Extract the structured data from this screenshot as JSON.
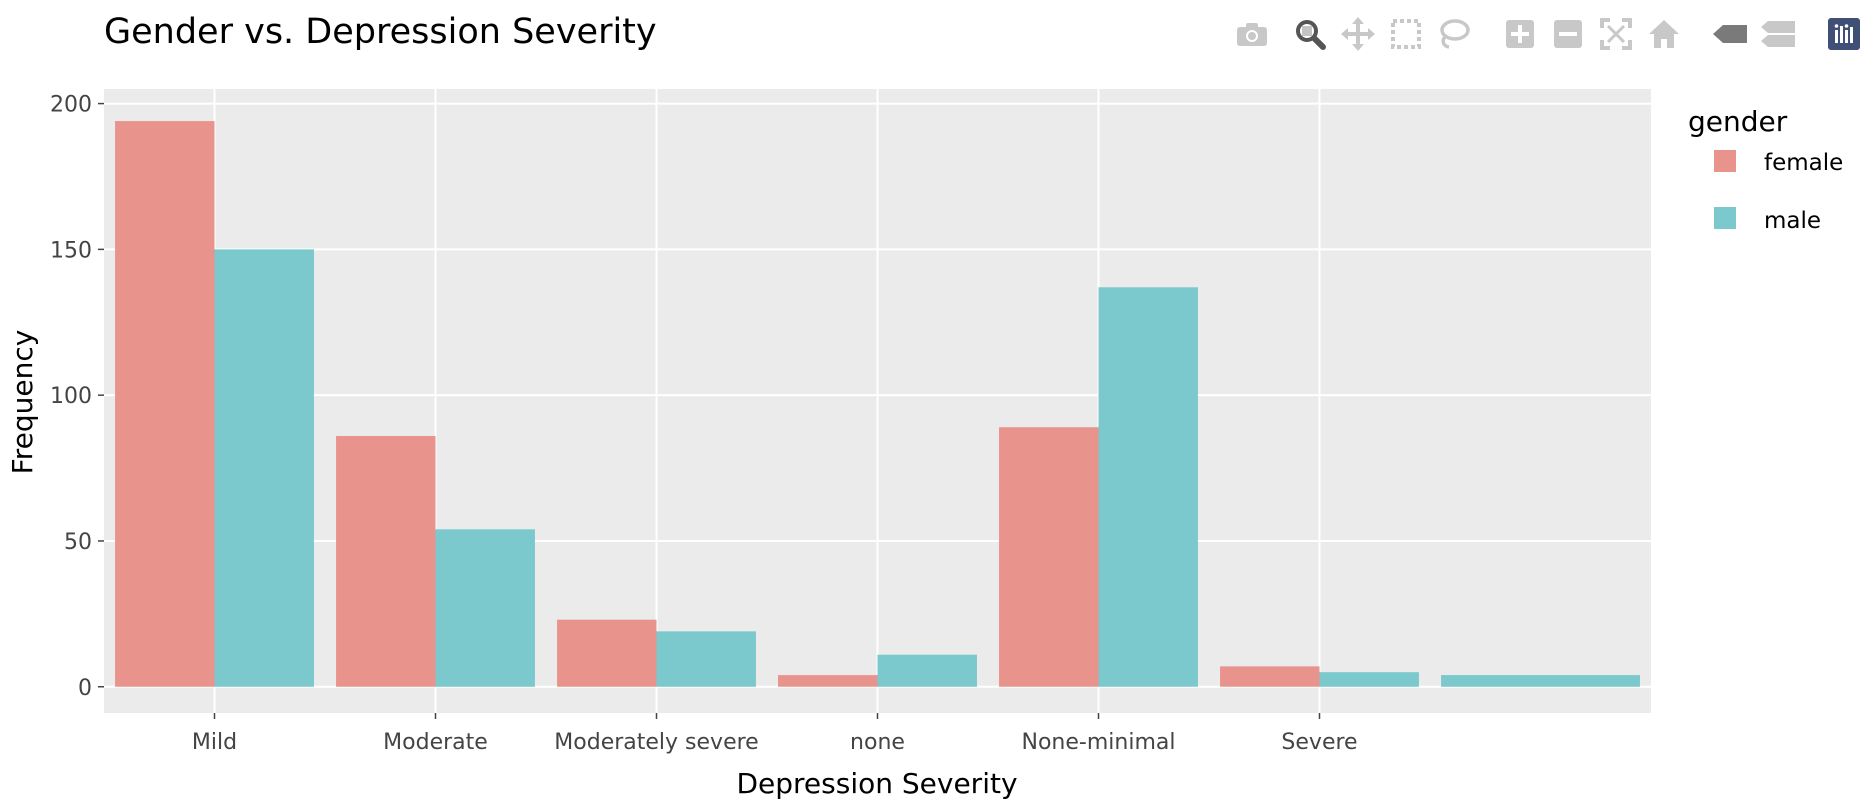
{
  "chart_data": {
    "type": "bar",
    "title": "Gender vs. Depression Severity",
    "xlabel": "Depression Severity",
    "ylabel": "Frequency",
    "categories": [
      "Mild",
      "Moderate",
      "Moderately severe",
      "none",
      "None-minimal",
      "Severe",
      ""
    ],
    "yticks": [
      "0",
      "50",
      "100",
      "150",
      "200"
    ],
    "ylim": [
      -9,
      205
    ],
    "grid": true,
    "legend": {
      "title": "gender",
      "placement": "right"
    },
    "series": [
      {
        "name": "female",
        "color": "#e8948c",
        "values": [
          194,
          86,
          23,
          4,
          89,
          7,
          null
        ]
      },
      {
        "name": "male",
        "color": "#7bc9cc",
        "values": [
          150,
          54,
          19,
          11,
          137,
          5,
          null
        ]
      }
    ],
    "extra_bar": {
      "category_index": 6,
      "value": 4,
      "color": "#7bc9cc",
      "span": "full"
    },
    "plot_background": "#ebebeb"
  },
  "modebar": {
    "icons": [
      "camera-icon",
      "zoom-icon",
      "pan-icon",
      "box-select-icon",
      "lasso-select-icon",
      "zoom-in-icon",
      "zoom-out-icon",
      "autoscale-icon",
      "reset-axes-icon",
      "spike-lines-icon",
      "compare-hover-icon",
      "plotly-logo-icon"
    ],
    "active_icon": "zoom-icon"
  }
}
